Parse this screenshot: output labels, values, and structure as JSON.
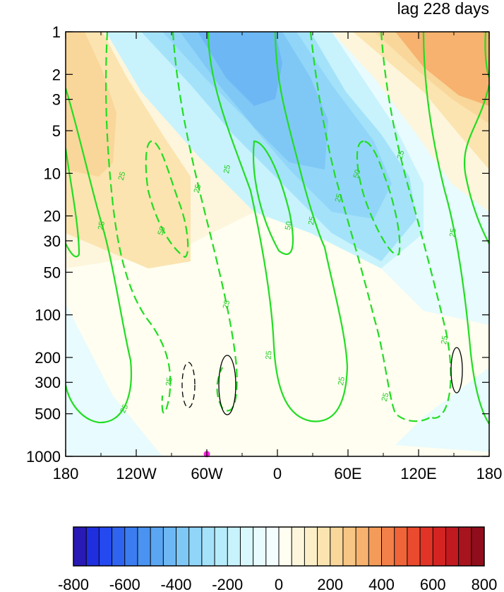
{
  "chart_data": {
    "type": "heatmap",
    "title": "lag 228 days",
    "xlabel": "",
    "ylabel": "",
    "x_ticks": [
      "180",
      "120W",
      "60W",
      "0",
      "60E",
      "120E",
      "180"
    ],
    "x_tick_values": [
      -180,
      -120,
      -60,
      0,
      60,
      120,
      180
    ],
    "xlim": [
      -180,
      180
    ],
    "y_ticks": [
      "1",
      "2",
      "3",
      "5",
      "10",
      "20",
      "30",
      "50",
      "100",
      "200",
      "300",
      "500",
      "1000"
    ],
    "y_tick_values": [
      1,
      2,
      3,
      5,
      10,
      20,
      30,
      50,
      100,
      200,
      300,
      500,
      1000
    ],
    "ylim": [
      1,
      1000
    ],
    "y_scale": "log",
    "y_reversed": true,
    "colorbar": {
      "orientation": "horizontal",
      "tick_labels": [
        "-800",
        "-600",
        "-400",
        "-200",
        "0",
        "200",
        "400",
        "600",
        "800"
      ],
      "tick_values": [
        -800,
        -600,
        -400,
        -200,
        0,
        200,
        400,
        600,
        800
      ],
      "levels": [
        -800,
        -750,
        -700,
        -650,
        -600,
        -550,
        -500,
        -450,
        -400,
        -350,
        -300,
        -250,
        -200,
        -150,
        -100,
        -50,
        0,
        50,
        100,
        150,
        200,
        250,
        300,
        350,
        400,
        450,
        500,
        550,
        600,
        650,
        700,
        750,
        800
      ],
      "colors": [
        "#2a1ab5",
        "#1f2fe0",
        "#2449ee",
        "#2f64f0",
        "#3b7df0",
        "#4a93f0",
        "#5ba6f2",
        "#6db8f4",
        "#7fc8f6",
        "#91d6f8",
        "#a4e2fa",
        "#b6ecfb",
        "#c8f3fc",
        "#d8f8fd",
        "#e8fbfe",
        "#f3fdfe",
        "#fffef0",
        "#fdf6dc",
        "#fcefc8",
        "#fbe4b0",
        "#f9d69a",
        "#f8c684",
        "#f6b26e",
        "#f49b5a",
        "#f28048",
        "#ef6438",
        "#ea4a2e",
        "#e23426",
        "#d42422",
        "#c01a20",
        "#a8141e",
        "#900d1b"
      ]
    },
    "shaded_field": [
      {
        "region": "upper western stratosphere (180-120W, 1-20 hPa)",
        "value": 250
      },
      {
        "region": "upper central stratosphere (90W-60E, 1-20 hPa)",
        "value": -250
      },
      {
        "region": "upper eastern stratosphere (120E-180, 1-3 hPa)",
        "value": 350
      },
      {
        "region": "troposphere 180-120W (200-1000 hPa)",
        "value": -50
      },
      {
        "region": "troposphere 120W-60E (100-500 hPa)",
        "value": 50
      },
      {
        "region": "troposphere 60E-180 (100-1000 hPa)",
        "value": -50
      }
    ],
    "contours_green": {
      "labels": [
        "25",
        "25",
        "50",
        "25",
        "25",
        "25",
        "50",
        "25",
        "25",
        "25",
        "50",
        "25",
        "25",
        "25",
        "25",
        "25",
        "25",
        "25"
      ],
      "solid_value": 25,
      "dashed_values": [
        -25,
        -50
      ]
    },
    "contours_black": {
      "description_values": [
        1,
        -1
      ]
    },
    "marker": {
      "lon": -60,
      "pressure": 850,
      "color": "#ff20e0"
    }
  }
}
